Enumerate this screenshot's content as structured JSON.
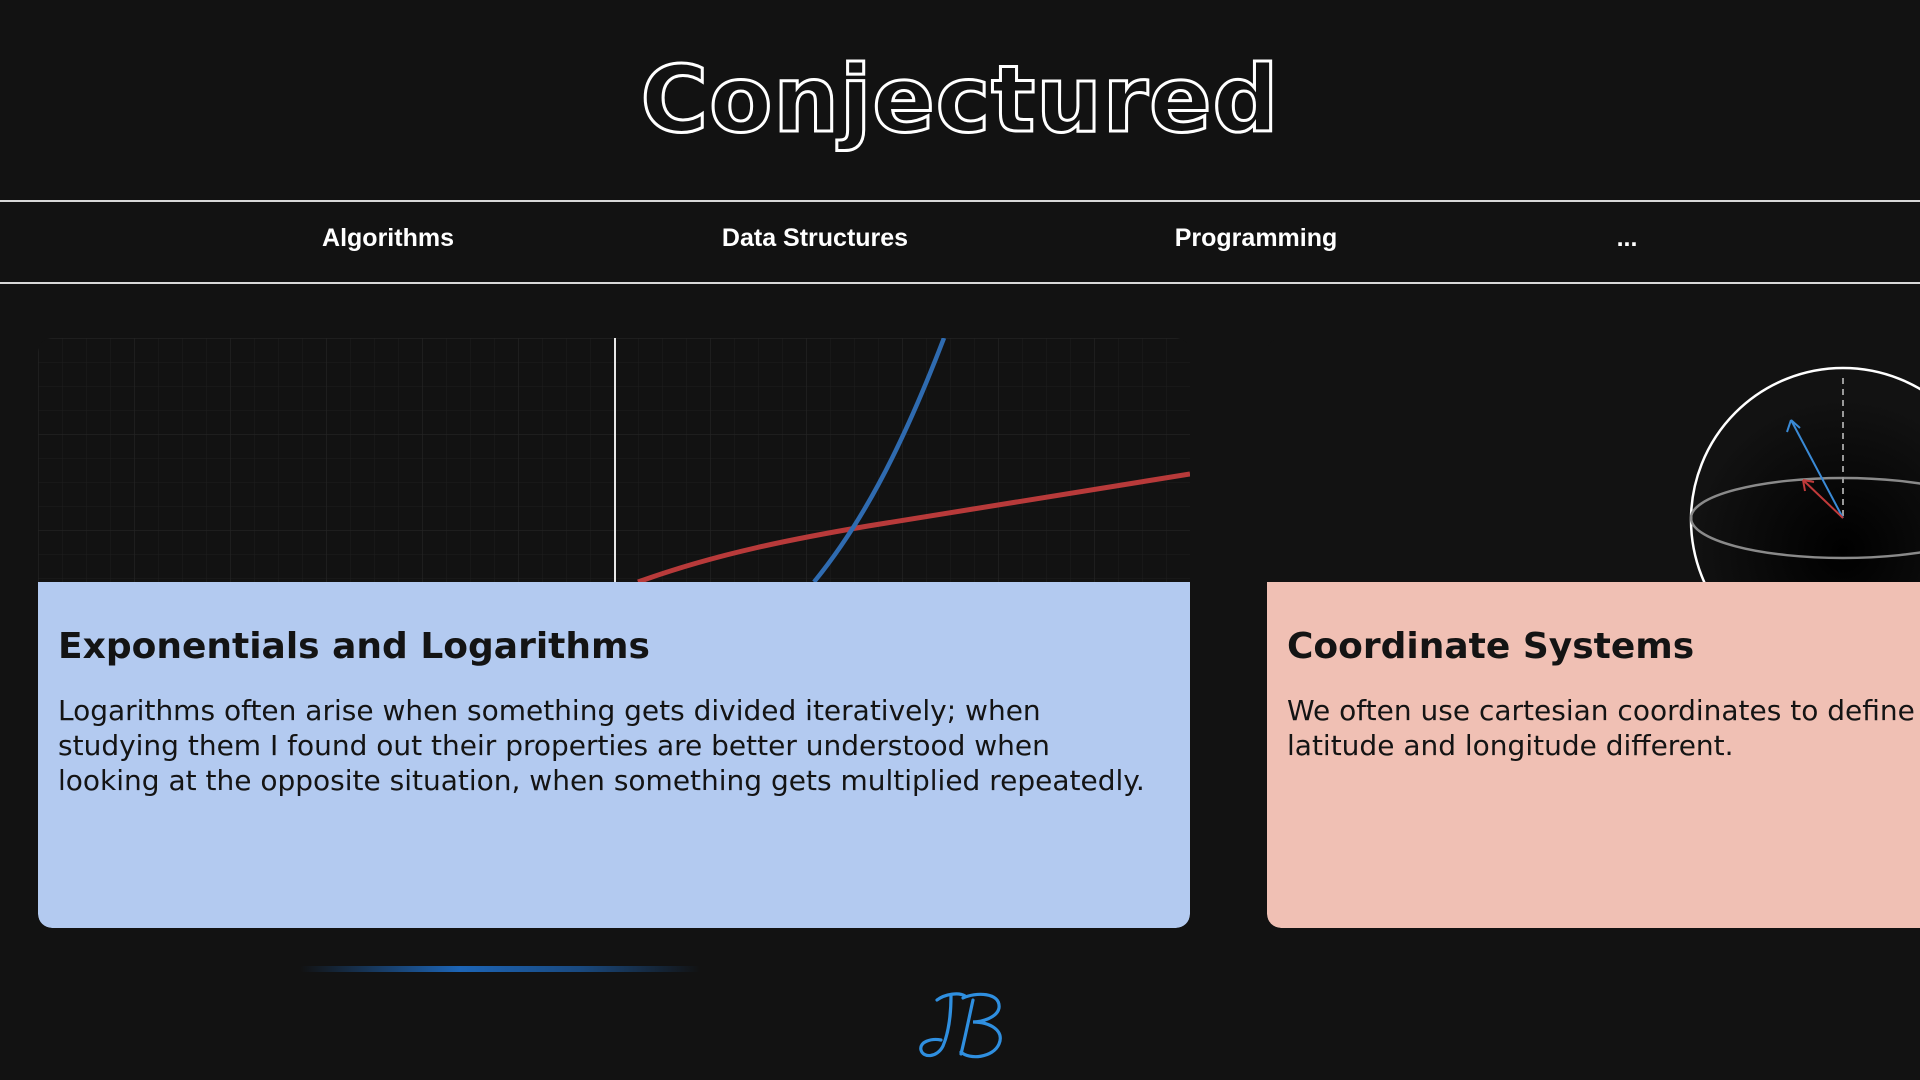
{
  "site": {
    "title": "Conjectured"
  },
  "nav": {
    "items": [
      {
        "label": "Algorithms"
      },
      {
        "label": "Data Structures"
      },
      {
        "label": "Programming"
      },
      {
        "label": "..."
      }
    ]
  },
  "cards": [
    {
      "title": "Exponentials and Logarithms",
      "text": "Logarithms often arise when something gets divided iteratively; when studying them I found out their properties are better understood when looking at the opposite situation, when something gets multiplied repeatedly.",
      "color": "#b3caf0"
    },
    {
      "title": "Coordinate Systems",
      "text": "We often use cartesian coordinates to define p only way to do so. Using latitude and longitude different.",
      "color": "#f0c0b4"
    }
  ],
  "colors": {
    "background": "#121212",
    "accent_blue": "#2f6bb0",
    "accent_red": "#b83a3a",
    "logo_blue": "#2f8fe0"
  },
  "icons": {
    "logo": "jb-monogram-icon"
  }
}
